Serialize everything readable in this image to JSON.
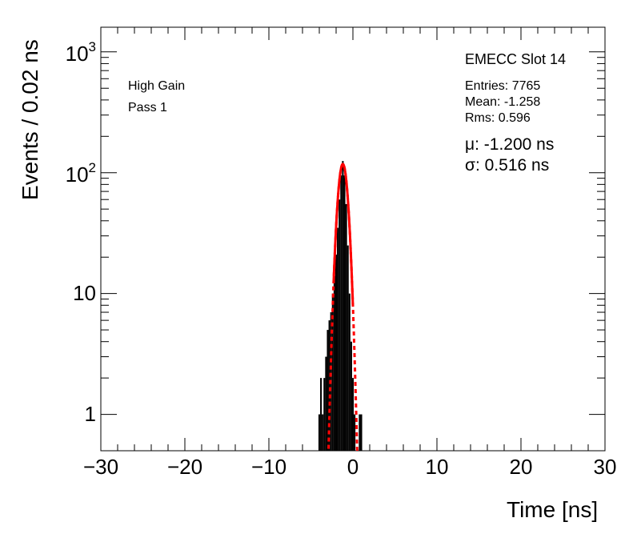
{
  "chart_data": {
    "type": "histogram",
    "title": "",
    "xlabel": "Time [ns]",
    "ylabel": "Events / 0.02 ns",
    "xlim": [
      -30,
      30
    ],
    "ylim": [
      0.5,
      1600
    ],
    "yscale": "log",
    "grid": false,
    "x_ticks": [
      -30,
      -20,
      -10,
      0,
      10,
      20,
      30
    ],
    "x_tick_labels": [
      "−30",
      "−20",
      "−10",
      "0",
      "10",
      "20",
      "30"
    ],
    "y_ticks": [
      1,
      10,
      100,
      1000
    ],
    "y_tick_labels": [
      {
        "base": "1",
        "exp": ""
      },
      {
        "base": "10",
        "exp": ""
      },
      {
        "base": "10",
        "exp": "2"
      },
      {
        "base": "10",
        "exp": "3"
      }
    ],
    "annotations": {
      "gain": "High Gain",
      "pass": "Pass 1",
      "slot": "EMECC Slot 14",
      "entries": "Entries: 7765",
      "mean": "Mean: -1.258",
      "rms": "Rms: 0.596",
      "mu": "μ: -1.200 ns",
      "sigma": "σ: 0.516 ns"
    },
    "series": [
      {
        "style": "histogram",
        "color": "#000000",
        "points": [
          [
            -4.0,
            1
          ],
          [
            -3.8,
            2
          ],
          [
            -3.6,
            1
          ],
          [
            -3.4,
            2
          ],
          [
            -3.2,
            3
          ],
          [
            -3.0,
            5
          ],
          [
            -2.8,
            6
          ],
          [
            -2.6,
            7
          ],
          [
            -2.4,
            10
          ],
          [
            -2.2,
            14
          ],
          [
            -2.0,
            21
          ],
          [
            -1.8,
            35
          ],
          [
            -1.6,
            60
          ],
          [
            -1.4,
            95
          ],
          [
            -1.2,
            125
          ],
          [
            -1.0,
            95
          ],
          [
            -0.8,
            55
          ],
          [
            -0.6,
            25
          ],
          [
            -0.4,
            10
          ],
          [
            -0.2,
            4
          ],
          [
            0.0,
            2
          ],
          [
            0.2,
            1
          ],
          [
            0.8,
            1
          ],
          [
            1.0,
            1
          ]
        ]
      },
      {
        "style": "fit-solid",
        "color": "#ff0000",
        "mean": -1.2,
        "sigma": 0.516,
        "amplitude": 118,
        "range": [
          -2.3,
          0.0
        ]
      },
      {
        "style": "fit-dashed",
        "color": "#ff0000",
        "mean": -1.2,
        "sigma": 0.516,
        "amplitude": 118,
        "range": [
          -2.9,
          0.7
        ]
      }
    ]
  }
}
